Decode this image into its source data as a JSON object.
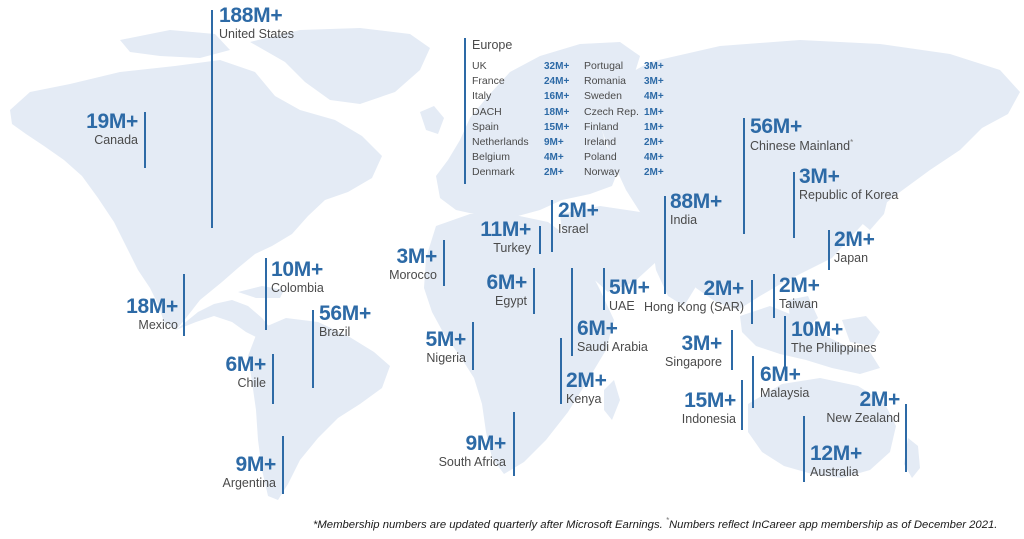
{
  "colors": {
    "land": "#e4ebf5",
    "accent": "#2d6aa6",
    "label": "#4a4a4a"
  },
  "regions": {
    "united_states": {
      "value": "188M+",
      "name": "United States"
    },
    "canada": {
      "value": "19M+",
      "name": "Canada"
    },
    "mexico": {
      "value": "18M+",
      "name": "Mexico"
    },
    "colombia": {
      "value": "10M+",
      "name": "Colombia"
    },
    "brazil": {
      "value": "56M+",
      "name": "Brazil"
    },
    "chile": {
      "value": "6M+",
      "name": "Chile"
    },
    "argentina": {
      "value": "9M+",
      "name": "Argentina"
    },
    "morocco": {
      "value": "3M+",
      "name": "Morocco"
    },
    "turkey": {
      "value": "11M+",
      "name": "Turkey"
    },
    "israel": {
      "value": "2M+",
      "name": "Israel"
    },
    "egypt": {
      "value": "6M+",
      "name": "Egypt"
    },
    "nigeria": {
      "value": "5M+",
      "name": "Nigeria"
    },
    "south_africa": {
      "value": "9M+",
      "name": "South Africa"
    },
    "kenya": {
      "value": "2M+",
      "name": "Kenya"
    },
    "saudi_arabia": {
      "value": "6M+",
      "name": "Saudi Arabia"
    },
    "uae": {
      "value": "5M+",
      "name": "UAE"
    },
    "india": {
      "value": "88M+",
      "name": "India"
    },
    "chinese_mainland": {
      "value": "56M+",
      "name": "Chinese Mainland",
      "mark": "*"
    },
    "korea": {
      "value": "3M+",
      "name": "Republic of Korea"
    },
    "japan": {
      "value": "2M+",
      "name": "Japan"
    },
    "hong_kong": {
      "value": "2M+",
      "name": "Hong Kong (SAR)"
    },
    "taiwan": {
      "value": "2M+",
      "name": "Taiwan"
    },
    "singapore": {
      "value": "3M+",
      "name": "Singapore"
    },
    "philippines": {
      "value": "10M+",
      "name": "The Philippines"
    },
    "malaysia": {
      "value": "6M+",
      "name": "Malaysia"
    },
    "indonesia": {
      "value": "15M+",
      "name": "Indonesia"
    },
    "new_zealand": {
      "value": "2M+",
      "name": "New Zealand"
    },
    "australia": {
      "value": "12M+",
      "name": "Australia"
    }
  },
  "europe": {
    "title": "Europe",
    "left": [
      {
        "country": "UK",
        "value": "32M+"
      },
      {
        "country": "France",
        "value": "24M+"
      },
      {
        "country": "Italy",
        "value": "16M+"
      },
      {
        "country": "DACH",
        "value": "18M+"
      },
      {
        "country": "Spain",
        "value": "15M+"
      },
      {
        "country": "Netherlands",
        "value": "9M+"
      },
      {
        "country": "Belgium",
        "value": "4M+"
      },
      {
        "country": "Denmark",
        "value": "2M+"
      }
    ],
    "right": [
      {
        "country": "Portugal",
        "value": "3M+"
      },
      {
        "country": "Romania",
        "value": "3M+"
      },
      {
        "country": "Sweden",
        "value": "4M+"
      },
      {
        "country": "Czech Rep.",
        "value": "1M+"
      },
      {
        "country": "Finland",
        "value": "1M+"
      },
      {
        "country": "Ireland",
        "value": "2M+"
      },
      {
        "country": "Poland",
        "value": "4M+"
      },
      {
        "country": "Norway",
        "value": "2M+"
      }
    ]
  },
  "footnote": {
    "text1": "*Membership numbers are updated quarterly after Microsoft Earnings. ",
    "mark": "*",
    "text2": "Numbers reflect InCareer app membership as of December 2021."
  }
}
